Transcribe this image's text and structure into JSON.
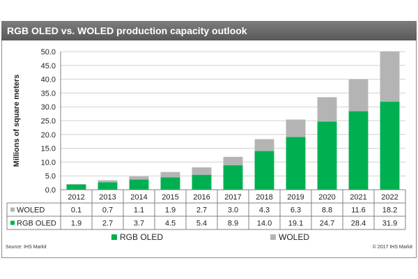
{
  "header": {
    "title": "RGB OLED vs. WOLED production capacity outlook"
  },
  "footer": {
    "source": "Source: IHS Markit",
    "copyright": "© 2017 IHS Markit"
  },
  "chart_data": {
    "type": "bar",
    "stacked": true,
    "title": "RGB OLED vs. WOLED production capacity outlook",
    "ylabel": "Millions of square meters",
    "ylim": [
      0,
      50
    ],
    "yticks": [
      "0.0",
      "5.0",
      "10.0",
      "15.0",
      "20.0",
      "25.0",
      "30.0",
      "35.0",
      "40.0",
      "45.0",
      "50.0"
    ],
    "grid": true,
    "categories": [
      "2012",
      "2013",
      "2014",
      "2015",
      "2016",
      "2017",
      "2018",
      "2019",
      "2020",
      "2021",
      "2022"
    ],
    "series": [
      {
        "name": "RGB OLED",
        "color": "#00b050",
        "values": [
          1.9,
          2.7,
          3.7,
          4.5,
          5.4,
          8.9,
          14.0,
          19.1,
          24.7,
          28.4,
          31.9
        ],
        "labels": [
          "1.9",
          "2.7",
          "3.7",
          "4.5",
          "5.4",
          "8.9",
          "14.0",
          "19.1",
          "24.7",
          "28.4",
          "31.9"
        ]
      },
      {
        "name": "WOLED",
        "color": "#b4b4b4",
        "values": [
          0.1,
          0.7,
          1.1,
          1.9,
          2.7,
          3.0,
          4.3,
          6.3,
          8.8,
          11.6,
          18.2
        ],
        "labels": [
          "0.1",
          "0.7",
          "1.1",
          "1.9",
          "2.7",
          "3.0",
          "4.3",
          "6.3",
          "8.8",
          "11.6",
          "18.2"
        ]
      }
    ],
    "table_rows_order": [
      "WOLED",
      "RGB OLED"
    ],
    "legend": {
      "position": "bottom",
      "order": [
        "RGB OLED",
        "WOLED"
      ]
    }
  }
}
